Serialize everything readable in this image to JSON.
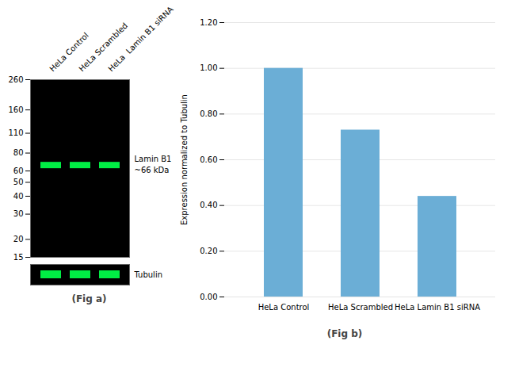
{
  "chart_data": [
    {
      "type": "blot",
      "title": "(Fig a)",
      "categories": [
        "HeLa Control",
        "HeLa Scrambled",
        "HeLa  Lamin B1 siRNA"
      ],
      "values": [
        66,
        66,
        66
      ],
      "color": "#00ee44",
      "log": "y",
      "ylim": [
        15,
        260
      ],
      "yticks": [
        260,
        160,
        110,
        80,
        60,
        50,
        40,
        30,
        20,
        15
      ],
      "annotations": [
        "Lamin B1",
        "~66 kDa",
        "Tubulin"
      ]
    },
    {
      "type": "bar",
      "title": "(Fig b)",
      "categories": [
        "HeLa Control",
        "HeLa Scrambled",
        "HeLa Lamin B1 siRNA"
      ],
      "values": [
        1.0,
        0.73,
        0.44
      ],
      "color": "#6baed6",
      "ylabel": "Expression normalized to Tubulin",
      "ylim": [
        0,
        1.2
      ],
      "yticks": [
        {
          "value": 0.0,
          "label": "0.00"
        },
        {
          "value": 0.2,
          "label": "0.20"
        },
        {
          "value": 0.4,
          "label": "0.40"
        },
        {
          "value": 0.6,
          "label": "0.60"
        },
        {
          "value": 0.8,
          "label": "0.80"
        },
        {
          "value": 1.0,
          "label": "1.00"
        },
        {
          "value": 1.2,
          "label": "1.20"
        }
      ],
      "grid": true
    }
  ]
}
